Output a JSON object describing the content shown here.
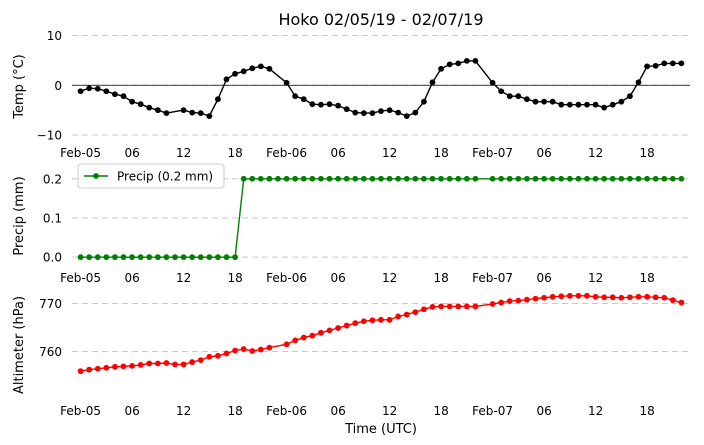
{
  "figure": {
    "title": "Hoko 02/05/19 - 02/07/19",
    "xlabel": "Time (UTC)",
    "x_tick_labels": [
      "Feb-05",
      "06",
      "12",
      "18",
      "Feb-06",
      "06",
      "12",
      "18",
      "Feb-07",
      "06",
      "12",
      "18"
    ],
    "x_tick_hours": [
      0,
      6,
      12,
      18,
      24,
      30,
      36,
      42,
      48,
      54,
      60,
      66
    ],
    "x_range_hours": [
      -1,
      71
    ]
  },
  "chart_data": [
    {
      "type": "line",
      "ylabel": "Temp (°C)",
      "ylim": [
        -11,
        10.5
      ],
      "yticks": [
        -10,
        0,
        10
      ],
      "ytick_labels": [
        "−10",
        "0",
        "10"
      ],
      "grid": "horizontal dashed",
      "zero_line": true,
      "color": "#000000",
      "series": [
        {
          "x": [
            0,
            1,
            2,
            3,
            4,
            5,
            6,
            7,
            8,
            9,
            10,
            12,
            13,
            14,
            15,
            16,
            17,
            18,
            19,
            20,
            21,
            22,
            24,
            25,
            26,
            27,
            28,
            29,
            30,
            31,
            32,
            33,
            34,
            35,
            36,
            37,
            38,
            39,
            40,
            41,
            42,
            43,
            44,
            45,
            46,
            48,
            49,
            50,
            51,
            52,
            53,
            54,
            55,
            56,
            57,
            58,
            59,
            60,
            61,
            62,
            63,
            64,
            65,
            66,
            67,
            68,
            69,
            70
          ],
          "y": [
            -1.2,
            -0.6,
            -0.7,
            -1.2,
            -1.8,
            -2.2,
            -3.3,
            -3.8,
            -4.5,
            -5.0,
            -5.6,
            -5.0,
            -5.5,
            -5.6,
            -6.2,
            -2.8,
            1.2,
            2.3,
            2.8,
            3.4,
            3.8,
            3.3,
            0.5,
            -2.2,
            -2.8,
            -3.8,
            -3.9,
            -3.8,
            -4.1,
            -4.8,
            -5.5,
            -5.6,
            -5.6,
            -5.2,
            -5.0,
            -5.5,
            -6.2,
            -5.5,
            -3.3,
            0.6,
            3.3,
            4.2,
            4.4,
            4.9,
            4.9,
            0.5,
            -1.2,
            -2.2,
            -2.2,
            -2.8,
            -3.3,
            -3.3,
            -3.3,
            -3.9,
            -3.9,
            -3.9,
            -3.9,
            -3.9,
            -4.5,
            -3.9,
            -3.3,
            -2.2,
            0.6,
            3.8,
            3.9,
            4.4,
            4.4,
            4.4
          ]
        }
      ]
    },
    {
      "type": "line",
      "ylabel": "Precip (mm)",
      "ylim": [
        -0.02,
        0.23
      ],
      "yticks": [
        0.0,
        0.1,
        0.2
      ],
      "ytick_labels": [
        "0.0",
        "0.1",
        "0.2"
      ],
      "grid": "horizontal dashed",
      "legend": "top-left",
      "color": "#008000",
      "series": [
        {
          "name": "Precip (0.2 mm)",
          "x": [
            0,
            1,
            2,
            3,
            4,
            5,
            6,
            7,
            8,
            9,
            10,
            11,
            12,
            13,
            14,
            15,
            16,
            17,
            18,
            19,
            20,
            21,
            22,
            23,
            24,
            25,
            26,
            27,
            28,
            29,
            30,
            31,
            32,
            33,
            34,
            35,
            36,
            37,
            38,
            39,
            40,
            41,
            42,
            43,
            44,
            45,
            46,
            48,
            49,
            50,
            51,
            52,
            53,
            54,
            55,
            56,
            57,
            58,
            59,
            60,
            61,
            62,
            63,
            64,
            65,
            66,
            67,
            68,
            69,
            70
          ],
          "y": [
            0,
            0,
            0,
            0,
            0,
            0,
            0,
            0,
            0,
            0,
            0,
            0,
            0,
            0,
            0,
            0,
            0,
            0,
            0,
            0.2,
            0.2,
            0.2,
            0.2,
            0.2,
            0.2,
            0.2,
            0.2,
            0.2,
            0.2,
            0.2,
            0.2,
            0.2,
            0.2,
            0.2,
            0.2,
            0.2,
            0.2,
            0.2,
            0.2,
            0.2,
            0.2,
            0.2,
            0.2,
            0.2,
            0.2,
            0.2,
            0.2,
            0.2,
            0.2,
            0.2,
            0.2,
            0.2,
            0.2,
            0.2,
            0.2,
            0.2,
            0.2,
            0.2,
            0.2,
            0.2,
            0.2,
            0.2,
            0.2,
            0.2,
            0.2,
            0.2,
            0.2,
            0.2,
            0.2,
            0.2
          ]
        }
      ]
    },
    {
      "type": "line",
      "ylabel": "Altimeter (hPa)",
      "ylim": [
        750.3,
        772.4
      ],
      "yticks": [
        760,
        770
      ],
      "ytick_labels": [
        "760",
        "770"
      ],
      "grid": "horizontal dashed",
      "color": "#ff0000",
      "series": [
        {
          "x": [
            0,
            1,
            2,
            3,
            4,
            5,
            6,
            7,
            8,
            9,
            10,
            11,
            12,
            13,
            14,
            15,
            16,
            17,
            18,
            19,
            20,
            21,
            22,
            24,
            25,
            26,
            27,
            28,
            29,
            30,
            31,
            32,
            33,
            34,
            35,
            36,
            37,
            38,
            39,
            40,
            41,
            42,
            43,
            44,
            45,
            46,
            48,
            49,
            50,
            51,
            52,
            53,
            54,
            55,
            56,
            57,
            58,
            59,
            60,
            61,
            62,
            63,
            64,
            65,
            66,
            67,
            68,
            69,
            70
          ],
          "y": [
            755.9,
            756.2,
            756.4,
            756.6,
            756.8,
            756.9,
            757.0,
            757.2,
            757.5,
            757.5,
            757.6,
            757.3,
            757.3,
            757.8,
            758.2,
            758.9,
            759.1,
            759.6,
            760.2,
            760.5,
            760.1,
            760.4,
            760.8,
            761.5,
            762.3,
            762.9,
            763.3,
            763.9,
            764.4,
            764.9,
            765.4,
            765.9,
            766.3,
            766.5,
            766.6,
            766.6,
            767.3,
            767.7,
            768.2,
            768.8,
            769.3,
            769.4,
            769.4,
            769.4,
            769.4,
            769.4,
            769.9,
            770.2,
            770.5,
            770.6,
            770.8,
            771.0,
            771.2,
            771.4,
            771.5,
            771.6,
            771.6,
            771.6,
            771.4,
            771.3,
            771.3,
            771.2,
            771.3,
            771.4,
            771.4,
            771.3,
            771.2,
            770.7,
            770.2
          ]
        }
      ]
    }
  ]
}
